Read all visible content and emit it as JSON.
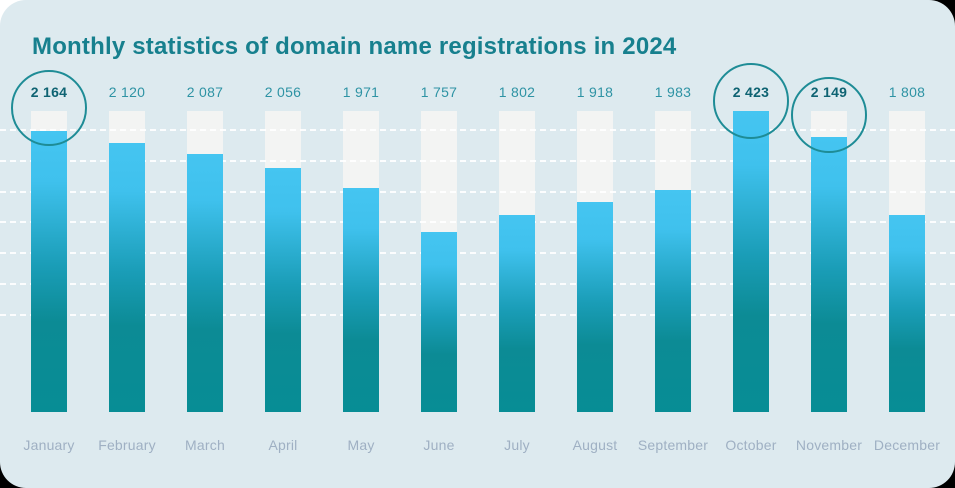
{
  "page": {
    "outer_background": "#000000",
    "corner_patch_color": "#ffffff"
  },
  "card": {
    "background": "#ddeaef"
  },
  "chart_data": {
    "type": "bar",
    "title": "Monthly statistics of domain name registrations in 2024",
    "categories": [
      "January",
      "February",
      "March",
      "April",
      "May",
      "June",
      "July",
      "August",
      "September",
      "October",
      "November",
      "December"
    ],
    "values": [
      2164,
      2120,
      2087,
      2056,
      1971,
      1757,
      1802,
      1918,
      1983,
      2423,
      2149,
      1808
    ],
    "value_labels": [
      "2 164",
      "2 120",
      "2 087",
      "2 056",
      "1 971",
      "1 757",
      "1 802",
      "1 918",
      "1 983",
      "2 423",
      "2 149",
      "1 808"
    ],
    "xlabel": "",
    "ylabel": "",
    "ylim": [
      0,
      2423
    ],
    "legend": "none",
    "grid": {
      "show": true,
      "orientation": "horizontal",
      "style": "dashed",
      "color": "#ffffff",
      "count": 7,
      "first_y": 129,
      "spacing": 30.8
    },
    "highlights": [
      {
        "month": "January",
        "index": 0,
        "circle_cy": 108
      },
      {
        "month": "October",
        "index": 9,
        "circle_cy": 101
      },
      {
        "month": "November",
        "index": 10,
        "circle_cy": 115
      }
    ],
    "bar_fill_pct": [
      93.4,
      89.4,
      85.7,
      81.1,
      74.4,
      59.8,
      65.4,
      69.8,
      73.8,
      100,
      91.4,
      65.4
    ],
    "colors": {
      "bar_gradient_top": "#45c5f1",
      "bar_gradient_bottom": "#078d95",
      "bar_track": "#f3f4f3",
      "title": "#17808e",
      "value_label": "#2e93a4",
      "value_label_highlight": "#0e6372",
      "month_label": "#9fb0c3",
      "circle_stroke": "#1e8c96"
    }
  }
}
